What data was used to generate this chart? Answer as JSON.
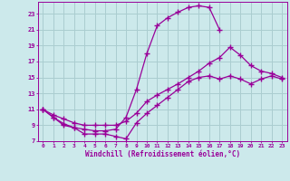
{
  "xlabel": "Windchill (Refroidissement éolien,°C)",
  "bg_color": "#cce9eb",
  "grid_color": "#aacdd0",
  "line_color": "#990099",
  "xlim": [
    -0.5,
    23.5
  ],
  "ylim": [
    7,
    24.5
  ],
  "xticks": [
    0,
    1,
    2,
    3,
    4,
    5,
    6,
    7,
    8,
    9,
    10,
    11,
    12,
    13,
    14,
    15,
    16,
    17,
    18,
    19,
    20,
    21,
    22,
    23
  ],
  "yticks": [
    7,
    9,
    11,
    13,
    15,
    17,
    19,
    21,
    23
  ],
  "line1_x": [
    0,
    1,
    2,
    3,
    4,
    5,
    6,
    7,
    8,
    9,
    10,
    11,
    12,
    13,
    14,
    15,
    16,
    17,
    18,
    19,
    20,
    21,
    22,
    23
  ],
  "line1_y": [
    11,
    10,
    9,
    8.7,
    7.9,
    7.9,
    7.9,
    7.6,
    7.3,
    9.3,
    10.5,
    11.5,
    12.5,
    13.5,
    14.5,
    15.0,
    15.2,
    14.8,
    15.2,
    14.8,
    14.2,
    14.8,
    15.2,
    14.8
  ],
  "line2_x": [
    0,
    1,
    2,
    3,
    4,
    5,
    6,
    7,
    8,
    9,
    10,
    11,
    12,
    13,
    14,
    15,
    16,
    17,
    18,
    19,
    20,
    21,
    22,
    23
  ],
  "line2_y": [
    11,
    10.3,
    9.8,
    9.3,
    9.0,
    9.0,
    9.0,
    9.0,
    9.5,
    10.5,
    12.0,
    12.8,
    13.5,
    14.2,
    15.0,
    15.8,
    16.8,
    17.5,
    18.8,
    17.8,
    16.5,
    15.8,
    15.5,
    15.0
  ],
  "line3_x": [
    0,
    1,
    2,
    3,
    4,
    5,
    6,
    7,
    8,
    9,
    10,
    11,
    12,
    13,
    14,
    15,
    16,
    17
  ],
  "line3_y": [
    11,
    10,
    9.2,
    8.7,
    8.5,
    8.3,
    8.3,
    8.5,
    10.0,
    13.5,
    18.0,
    21.5,
    22.5,
    23.2,
    23.8,
    24.0,
    23.8,
    21.0
  ]
}
